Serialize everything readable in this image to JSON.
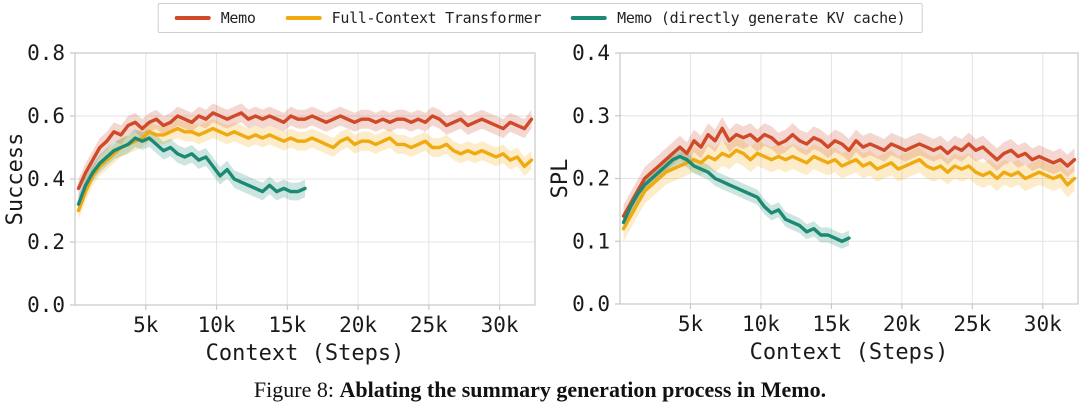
{
  "legend": {
    "items": [
      {
        "label": "Memo",
        "color": "#cf4a28"
      },
      {
        "label": "Full-Context Transformer",
        "color": "#f0a90e"
      },
      {
        "label": "Memo (directly generate KV cache)",
        "color": "#1b8a74"
      }
    ]
  },
  "caption": {
    "prefix": "Figure 8: ",
    "title": "Ablating the summary generation process in Memo."
  },
  "colors": {
    "memo": "#cf4a28",
    "full_context": "#f0a90e",
    "memo_kv": "#1b8a74",
    "grid": "#e4e4e4",
    "spine": "#c8c8c8",
    "tick_text": "#1a1a1a"
  },
  "chart_data": [
    {
      "type": "line",
      "xlabel": "Context (Steps)",
      "ylabel": "Success",
      "xlim": [
        0,
        32500
      ],
      "ylim": [
        0,
        0.8
      ],
      "grid": true,
      "legend_position": "top-outside",
      "yticks": [
        {
          "v": 0.0,
          "label": "0.0"
        },
        {
          "v": 0.2,
          "label": "0.2"
        },
        {
          "v": 0.4,
          "label": "0.4"
        },
        {
          "v": 0.6,
          "label": "0.6"
        },
        {
          "v": 0.8,
          "label": "0.8"
        }
      ],
      "xticks": [
        {
          "v": 5000,
          "label": "5k"
        },
        {
          "v": 10000,
          "label": "10k"
        },
        {
          "v": 15000,
          "label": "15k"
        },
        {
          "v": 20000,
          "label": "20k"
        },
        {
          "v": 25000,
          "label": "25k"
        },
        {
          "v": 30000,
          "label": "30k"
        }
      ],
      "x": [
        250,
        750,
        1250,
        1750,
        2250,
        2750,
        3250,
        3750,
        4250,
        4750,
        5250,
        5750,
        6250,
        6750,
        7250,
        7750,
        8250,
        8750,
        9250,
        9750,
        10250,
        10750,
        11250,
        11750,
        12250,
        12750,
        13250,
        13750,
        14250,
        14750,
        15250,
        15750,
        16250,
        16750,
        17250,
        17750,
        18250,
        18750,
        19250,
        19750,
        20250,
        20750,
        21250,
        21750,
        22250,
        22750,
        23250,
        23750,
        24250,
        24750,
        25250,
        25750,
        26250,
        26750,
        27250,
        27750,
        28250,
        28750,
        29250,
        29750,
        30250,
        30750,
        31250,
        31750,
        32250
      ],
      "series": [
        {
          "name": "Memo",
          "color": "#cf4a28",
          "band": 0.03,
          "y": [
            0.37,
            0.42,
            0.46,
            0.5,
            0.52,
            0.55,
            0.54,
            0.57,
            0.58,
            0.56,
            0.58,
            0.59,
            0.57,
            0.58,
            0.6,
            0.59,
            0.58,
            0.6,
            0.59,
            0.61,
            0.6,
            0.59,
            0.6,
            0.61,
            0.59,
            0.6,
            0.59,
            0.6,
            0.59,
            0.58,
            0.6,
            0.59,
            0.59,
            0.6,
            0.59,
            0.58,
            0.59,
            0.6,
            0.59,
            0.58,
            0.59,
            0.59,
            0.58,
            0.59,
            0.58,
            0.59,
            0.59,
            0.58,
            0.59,
            0.58,
            0.6,
            0.59,
            0.57,
            0.58,
            0.59,
            0.57,
            0.58,
            0.59,
            0.58,
            0.57,
            0.56,
            0.58,
            0.57,
            0.56,
            0.59
          ]
        },
        {
          "name": "Full-Context Transformer",
          "color": "#f0a90e",
          "band": 0.03,
          "y": [
            0.3,
            0.36,
            0.41,
            0.44,
            0.46,
            0.48,
            0.5,
            0.51,
            0.52,
            0.53,
            0.55,
            0.54,
            0.54,
            0.55,
            0.56,
            0.55,
            0.55,
            0.54,
            0.55,
            0.56,
            0.55,
            0.54,
            0.55,
            0.54,
            0.53,
            0.54,
            0.53,
            0.54,
            0.53,
            0.52,
            0.53,
            0.52,
            0.52,
            0.53,
            0.52,
            0.51,
            0.5,
            0.52,
            0.53,
            0.51,
            0.52,
            0.52,
            0.51,
            0.52,
            0.53,
            0.51,
            0.51,
            0.5,
            0.51,
            0.52,
            0.5,
            0.5,
            0.51,
            0.49,
            0.48,
            0.49,
            0.48,
            0.49,
            0.48,
            0.47,
            0.48,
            0.46,
            0.47,
            0.44,
            0.46
          ]
        },
        {
          "name": "Memo (directly generate KV cache)",
          "color": "#1b8a74",
          "band": 0.028,
          "y": [
            0.32,
            0.38,
            0.42,
            0.45,
            0.47,
            0.49,
            0.5,
            0.51,
            0.53,
            0.52,
            0.53,
            0.51,
            0.49,
            0.5,
            0.48,
            0.47,
            0.48,
            0.46,
            0.47,
            0.44,
            0.41,
            0.43,
            0.4,
            0.39,
            0.38,
            0.37,
            0.36,
            0.38,
            0.36,
            0.37,
            0.36,
            0.36,
            0.37
          ]
        }
      ]
    },
    {
      "type": "line",
      "xlabel": "Context (Steps)",
      "ylabel": "SPL",
      "xlim": [
        0,
        32500
      ],
      "ylim": [
        0,
        0.4
      ],
      "grid": true,
      "legend_position": "top-outside",
      "yticks": [
        {
          "v": 0.0,
          "label": "0.0"
        },
        {
          "v": 0.1,
          "label": "0.1"
        },
        {
          "v": 0.2,
          "label": "0.2"
        },
        {
          "v": 0.3,
          "label": "0.3"
        },
        {
          "v": 0.4,
          "label": "0.4"
        }
      ],
      "xticks": [
        {
          "v": 5000,
          "label": "5k"
        },
        {
          "v": 10000,
          "label": "10k"
        },
        {
          "v": 15000,
          "label": "15k"
        },
        {
          "v": 20000,
          "label": "20k"
        },
        {
          "v": 25000,
          "label": "25k"
        },
        {
          "v": 30000,
          "label": "30k"
        }
      ],
      "x": [
        250,
        750,
        1250,
        1750,
        2250,
        2750,
        3250,
        3750,
        4250,
        4750,
        5250,
        5750,
        6250,
        6750,
        7250,
        7750,
        8250,
        8750,
        9250,
        9750,
        10250,
        10750,
        11250,
        11750,
        12250,
        12750,
        13250,
        13750,
        14250,
        14750,
        15250,
        15750,
        16250,
        16750,
        17250,
        17750,
        18250,
        18750,
        19250,
        19750,
        20250,
        20750,
        21250,
        21750,
        22250,
        22750,
        23250,
        23750,
        24250,
        24750,
        25250,
        25750,
        26250,
        26750,
        27250,
        27750,
        28250,
        28750,
        29250,
        29750,
        30250,
        30750,
        31250,
        31750,
        32250
      ],
      "series": [
        {
          "name": "Memo",
          "color": "#cf4a28",
          "band": 0.018,
          "y": [
            0.14,
            0.16,
            0.18,
            0.2,
            0.21,
            0.22,
            0.23,
            0.24,
            0.25,
            0.24,
            0.26,
            0.25,
            0.27,
            0.26,
            0.28,
            0.26,
            0.27,
            0.265,
            0.27,
            0.26,
            0.27,
            0.265,
            0.255,
            0.26,
            0.27,
            0.26,
            0.255,
            0.265,
            0.26,
            0.25,
            0.26,
            0.255,
            0.245,
            0.26,
            0.25,
            0.255,
            0.25,
            0.245,
            0.255,
            0.25,
            0.245,
            0.25,
            0.255,
            0.25,
            0.245,
            0.25,
            0.24,
            0.25,
            0.245,
            0.255,
            0.245,
            0.25,
            0.24,
            0.23,
            0.24,
            0.245,
            0.235,
            0.24,
            0.23,
            0.235,
            0.23,
            0.225,
            0.23,
            0.22,
            0.23
          ]
        },
        {
          "name": "Full-Context Transformer",
          "color": "#f0a90e",
          "band": 0.02,
          "y": [
            0.12,
            0.14,
            0.16,
            0.18,
            0.19,
            0.2,
            0.21,
            0.215,
            0.22,
            0.225,
            0.23,
            0.225,
            0.235,
            0.23,
            0.24,
            0.235,
            0.245,
            0.24,
            0.23,
            0.24,
            0.235,
            0.23,
            0.235,
            0.23,
            0.235,
            0.23,
            0.225,
            0.235,
            0.23,
            0.225,
            0.23,
            0.22,
            0.225,
            0.23,
            0.22,
            0.225,
            0.215,
            0.22,
            0.225,
            0.215,
            0.22,
            0.225,
            0.23,
            0.22,
            0.215,
            0.22,
            0.21,
            0.22,
            0.215,
            0.22,
            0.21,
            0.205,
            0.21,
            0.2,
            0.21,
            0.205,
            0.21,
            0.2,
            0.205,
            0.21,
            0.205,
            0.2,
            0.205,
            0.19,
            0.2
          ]
        },
        {
          "name": "Memo (directly generate KV cache)",
          "color": "#1b8a74",
          "band": 0.012,
          "y": [
            0.13,
            0.155,
            0.175,
            0.19,
            0.2,
            0.21,
            0.22,
            0.23,
            0.235,
            0.23,
            0.22,
            0.215,
            0.21,
            0.2,
            0.195,
            0.19,
            0.185,
            0.18,
            0.175,
            0.17,
            0.155,
            0.145,
            0.15,
            0.135,
            0.13,
            0.125,
            0.115,
            0.12,
            0.11,
            0.11,
            0.105,
            0.1,
            0.105
          ]
        }
      ]
    }
  ]
}
